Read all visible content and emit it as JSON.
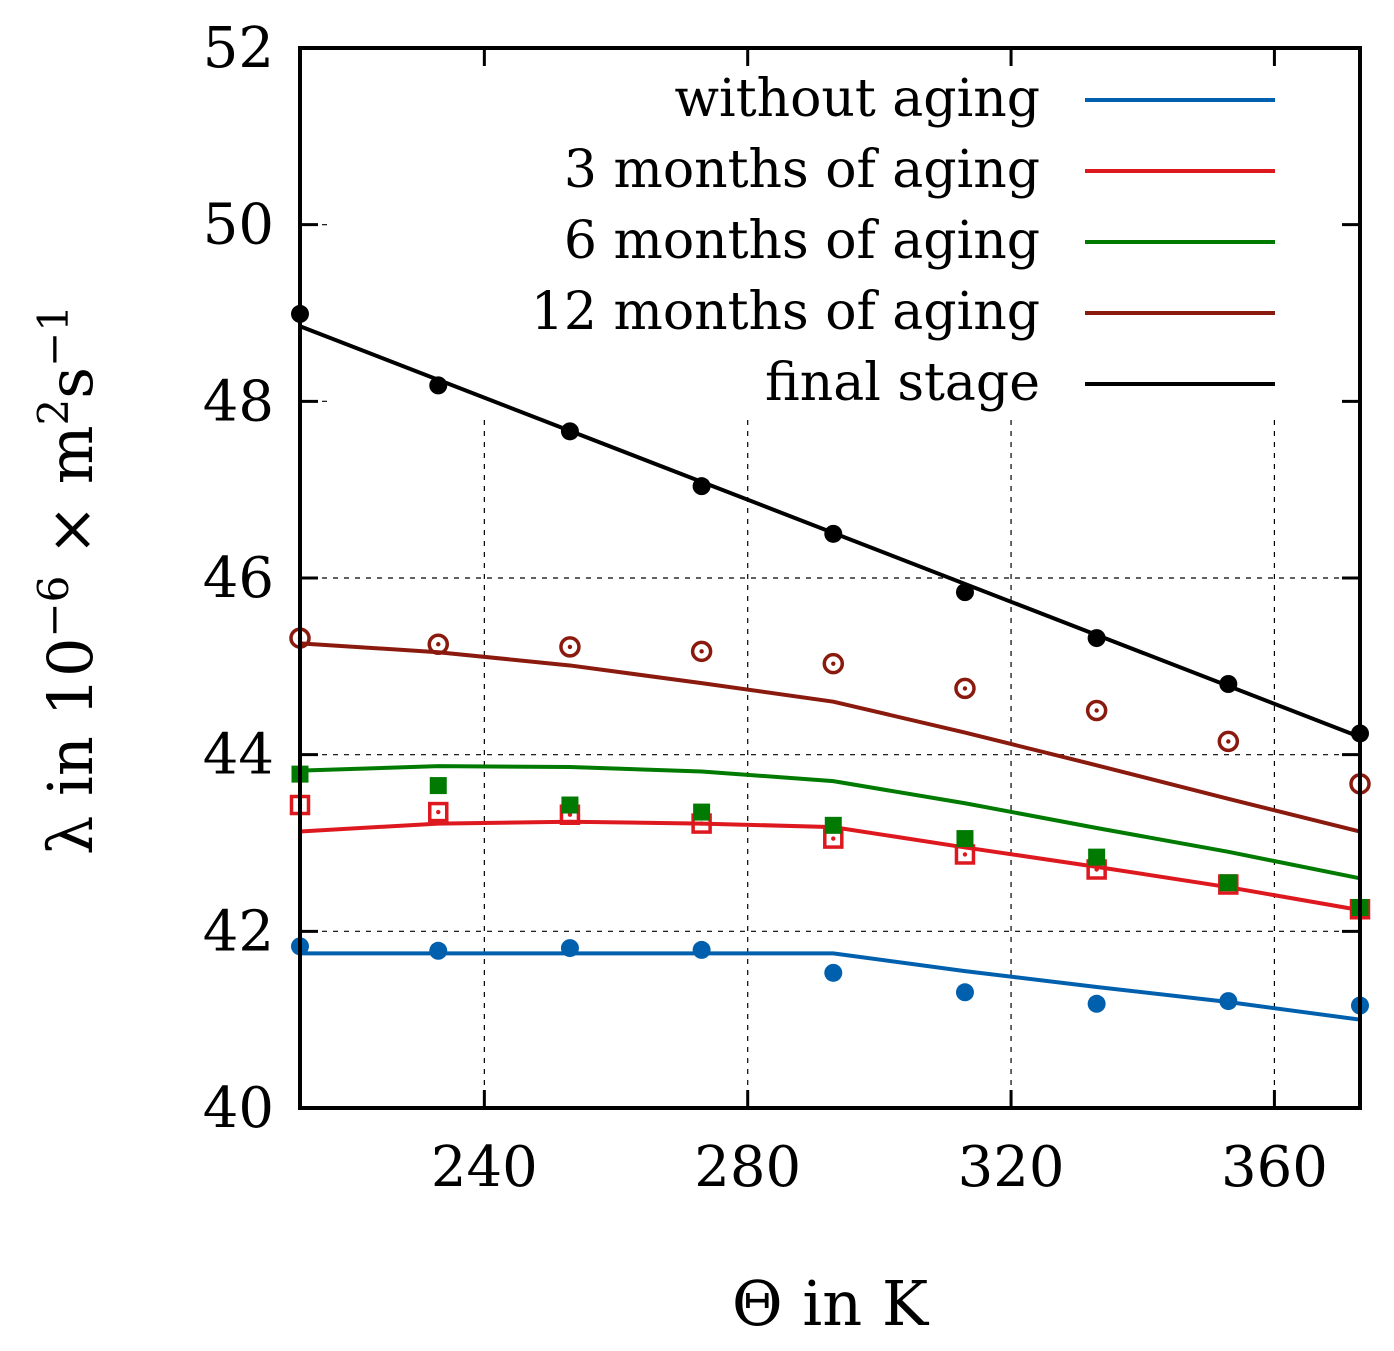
{
  "chart_data": {
    "type": "line",
    "xlabel": "Θ in K",
    "ylabel": {
      "base": "λ in 10",
      "exp1": "−6",
      "mid": " × m",
      "exp2": "2",
      "mid2": "s",
      "exp3": "−1"
    },
    "xlim": [
      212,
      373
    ],
    "ylim": [
      40,
      52
    ],
    "xticks": [
      240,
      280,
      320,
      360
    ],
    "yticks": [
      40,
      42,
      44,
      46,
      48,
      50,
      52
    ],
    "legend_position": "top-right",
    "series": [
      {
        "name": "without aging",
        "color": "#0060ad",
        "marker": "circle",
        "line": {
          "x": [
            212,
            233,
            253,
            273,
            293,
            313,
            333,
            353,
            373
          ],
          "y": [
            41.75,
            41.75,
            41.75,
            41.75,
            41.75,
            41.55,
            41.37,
            41.2,
            41.0
          ]
        },
        "points": {
          "x": [
            212,
            233,
            253,
            273,
            293,
            313,
            333,
            353,
            373
          ],
          "y": [
            41.83,
            41.78,
            41.81,
            41.79,
            41.53,
            41.31,
            41.18,
            41.21,
            41.16
          ]
        }
      },
      {
        "name": "3 months of aging",
        "color": "#dd181f",
        "marker": "open-square-dot",
        "line": {
          "x": [
            212,
            233,
            253,
            273,
            293,
            313,
            333,
            353,
            373
          ],
          "y": [
            43.13,
            43.22,
            43.24,
            43.22,
            43.18,
            42.95,
            42.73,
            42.5,
            42.24
          ]
        },
        "points": {
          "x": [
            212,
            233,
            253,
            273,
            293,
            313,
            333,
            353,
            373
          ],
          "y": [
            43.43,
            43.35,
            43.32,
            43.22,
            43.05,
            42.87,
            42.7,
            42.53,
            42.25
          ]
        }
      },
      {
        "name": "6 months of aging",
        "color": "#007a00",
        "marker": "filled-square",
        "line": {
          "x": [
            212,
            233,
            253,
            273,
            293,
            313,
            333,
            353,
            373
          ],
          "y": [
            43.82,
            43.87,
            43.86,
            43.81,
            43.7,
            43.45,
            43.17,
            42.9,
            42.6
          ]
        },
        "points": {
          "x": [
            212,
            233,
            253,
            273,
            293,
            313,
            333,
            353,
            373
          ],
          "y": [
            43.78,
            43.65,
            43.43,
            43.35,
            43.2,
            43.05,
            42.84,
            42.55,
            42.27
          ]
        }
      },
      {
        "name": "12 months of aging",
        "color": "#8b1a0e",
        "marker": "open-circle-dot",
        "line": {
          "x": [
            212,
            233,
            253,
            273,
            293,
            313,
            333,
            353,
            373
          ],
          "y": [
            45.26,
            45.16,
            45.01,
            44.81,
            44.6,
            44.25,
            43.88,
            43.5,
            43.13
          ]
        },
        "points": {
          "x": [
            212,
            233,
            253,
            273,
            293,
            313,
            333,
            353,
            373
          ],
          "y": [
            45.32,
            45.25,
            45.22,
            45.17,
            45.03,
            44.75,
            44.5,
            44.15,
            43.67
          ]
        }
      },
      {
        "name": "final stage",
        "color": "#000000",
        "marker": "circle",
        "line": {
          "x": [
            212,
            373
          ],
          "y": [
            48.85,
            44.2
          ]
        },
        "points": {
          "x": [
            212,
            233,
            253,
            273,
            293,
            313,
            333,
            353,
            373
          ],
          "y": [
            48.99,
            48.18,
            47.66,
            47.04,
            46.5,
            45.84,
            45.32,
            44.8,
            44.24
          ]
        }
      }
    ]
  }
}
